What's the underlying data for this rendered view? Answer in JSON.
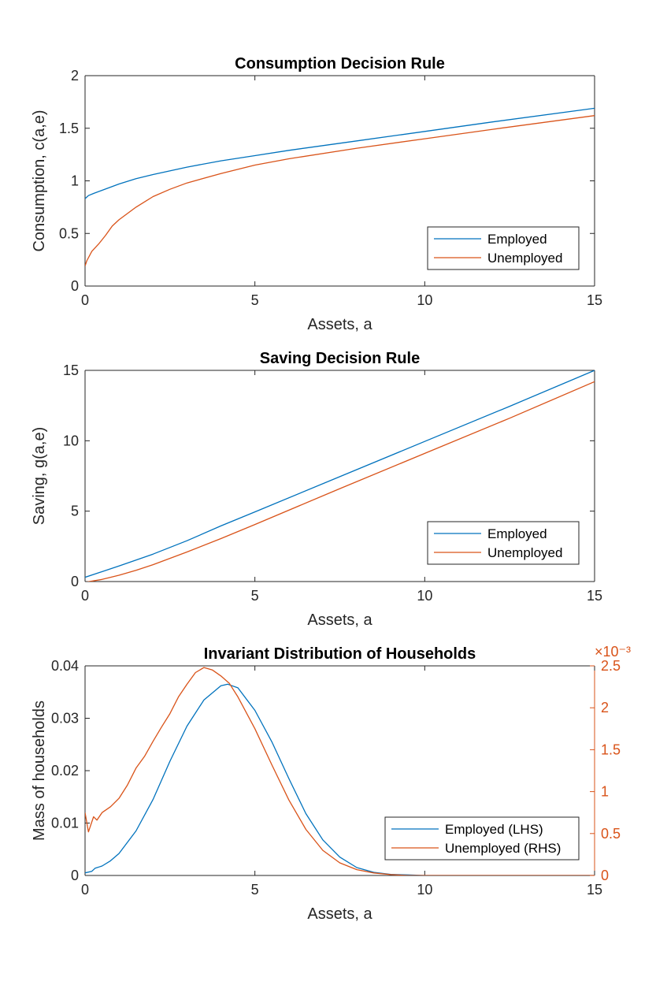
{
  "colors": {
    "employed": "#0072bd",
    "unemployed": "#d95319",
    "axis": "#262626"
  },
  "chart_data": [
    {
      "type": "line",
      "title": "Consumption Decision Rule",
      "xlabel": "Assets, a",
      "ylabel": "Consumption, c(a,e)",
      "xlim": [
        0,
        15
      ],
      "ylim": [
        0,
        2
      ],
      "xticks": [
        "0",
        "5",
        "10",
        "15"
      ],
      "yticks": [
        "0",
        "0.5",
        "1",
        "1.5",
        "2"
      ],
      "legend_position": "bottom-right",
      "series": [
        {
          "name": "Employed",
          "color": "employed",
          "x": [
            0,
            0.1,
            0.25,
            0.5,
            1,
            1.5,
            2,
            3,
            4,
            5,
            6,
            8,
            10,
            12,
            15
          ],
          "y": [
            0.83,
            0.86,
            0.88,
            0.91,
            0.97,
            1.02,
            1.06,
            1.13,
            1.19,
            1.24,
            1.29,
            1.38,
            1.47,
            1.56,
            1.69
          ]
        },
        {
          "name": "Unemployed",
          "color": "unemployed",
          "x": [
            0,
            0.05,
            0.2,
            0.4,
            0.6,
            0.8,
            1,
            1.5,
            2,
            2.5,
            3,
            4,
            5,
            6,
            8,
            10,
            12,
            15
          ],
          "y": [
            0.19,
            0.24,
            0.33,
            0.4,
            0.48,
            0.57,
            0.63,
            0.75,
            0.85,
            0.92,
            0.98,
            1.07,
            1.15,
            1.21,
            1.31,
            1.4,
            1.49,
            1.62
          ]
        }
      ]
    },
    {
      "type": "line",
      "title": "Saving Decision Rule",
      "xlabel": "Assets, a",
      "ylabel": "Saving, g(a,e)",
      "xlim": [
        0,
        15
      ],
      "ylim": [
        0,
        15
      ],
      "xticks": [
        "0",
        "5",
        "10",
        "15"
      ],
      "yticks": [
        "0",
        "5",
        "10",
        "15"
      ],
      "legend_position": "bottom-right",
      "series": [
        {
          "name": "Employed",
          "color": "employed",
          "x": [
            0,
            1,
            2,
            3,
            4,
            5,
            7.5,
            10,
            12.5,
            15
          ],
          "y": [
            0.3,
            1.1,
            1.95,
            2.9,
            3.95,
            4.95,
            7.45,
            9.95,
            12.45,
            15.0
          ]
        },
        {
          "name": "Unemployed",
          "color": "unemployed",
          "x": [
            0,
            0.5,
            1,
            1.5,
            2,
            3,
            4,
            5,
            7.5,
            10,
            12.5,
            15
          ],
          "y": [
            -0.05,
            0.15,
            0.45,
            0.8,
            1.2,
            2.1,
            3.05,
            4.05,
            6.6,
            9.1,
            11.6,
            14.2
          ]
        }
      ]
    },
    {
      "type": "line",
      "title": "Invariant Distribution of Households",
      "xlabel": "Assets, a",
      "ylabel": "Mass of households",
      "xlim": [
        0,
        15
      ],
      "ylim": [
        0,
        0.04
      ],
      "y2lim": [
        0,
        0.0025
      ],
      "y2_exponent": "×10⁻³",
      "xticks": [
        "0",
        "5",
        "10",
        "15"
      ],
      "yticks": [
        "0",
        "0.01",
        "0.02",
        "0.03",
        "0.04"
      ],
      "y2ticks": [
        "0",
        "0.5",
        "1",
        "1.5",
        "2",
        "2.5"
      ],
      "legend_position": "bottom-right",
      "series": [
        {
          "name": "Employed (LHS)",
          "color": "employed",
          "axis": "left",
          "x": [
            0,
            0.2,
            0.3,
            0.5,
            0.75,
            1,
            1.5,
            2,
            2.5,
            3,
            3.5,
            4,
            4.2,
            4.5,
            5,
            5.5,
            6,
            6.5,
            7,
            7.5,
            8,
            8.5,
            9,
            9.5,
            10,
            12,
            15
          ],
          "y": [
            0.0005,
            0.0008,
            0.0014,
            0.0018,
            0.0028,
            0.0042,
            0.0085,
            0.0145,
            0.0218,
            0.0285,
            0.0335,
            0.0362,
            0.0365,
            0.0358,
            0.0315,
            0.0255,
            0.0185,
            0.0118,
            0.0068,
            0.0035,
            0.0015,
            0.0006,
            0.0002,
            0.0001,
            0.0,
            0.0,
            0.0
          ]
        },
        {
          "name": "Unemployed (RHS)",
          "color": "unemployed",
          "axis": "right",
          "x": [
            0,
            0.1,
            0.25,
            0.35,
            0.5,
            0.75,
            1,
            1.25,
            1.5,
            1.75,
            2,
            2.25,
            2.5,
            2.75,
            3,
            3.25,
            3.5,
            3.75,
            4,
            4.25,
            4.5,
            5,
            5.5,
            6,
            6.5,
            7,
            7.5,
            8,
            8.5,
            9,
            9.5,
            10,
            12,
            15
          ],
          "y": [
            0.00075,
            0.00052,
            0.0007,
            0.00066,
            0.00075,
            0.00082,
            0.00092,
            0.00108,
            0.00128,
            0.00142,
            0.0016,
            0.00177,
            0.00193,
            0.00213,
            0.00228,
            0.00242,
            0.00248,
            0.00245,
            0.00238,
            0.00229,
            0.00213,
            0.00175,
            0.00132,
            0.0009,
            0.00055,
            0.0003,
            0.00015,
            7e-05,
            3e-05,
            1e-05,
            0.0,
            0.0,
            0.0,
            0.0
          ]
        }
      ]
    }
  ]
}
